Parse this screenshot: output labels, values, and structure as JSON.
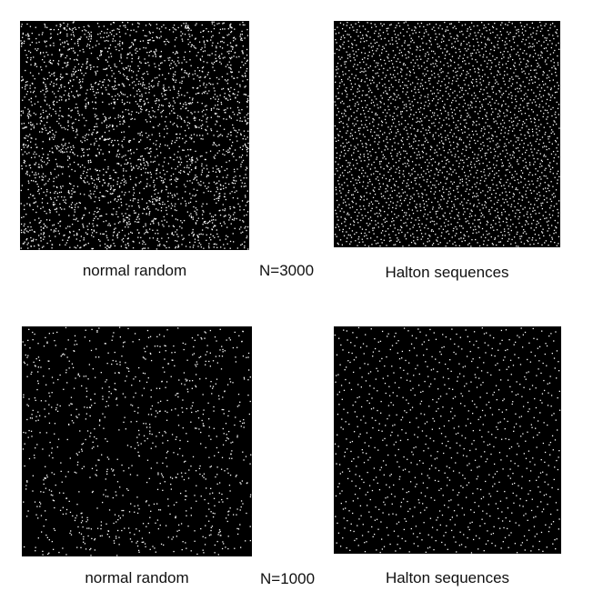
{
  "chart_data": [
    {
      "type": "scatter",
      "caption": "normal random",
      "n": 3000,
      "method": "random",
      "xlim": [
        0,
        1
      ],
      "ylim": [
        0,
        1
      ],
      "background": "#000000",
      "point_color": "#ffffff",
      "grid": false
    },
    {
      "type": "scatter",
      "caption": "Halton sequences",
      "n": 3000,
      "method": "halton",
      "xlim": [
        0,
        1
      ],
      "ylim": [
        0,
        1
      ],
      "background": "#000000",
      "point_color": "#ffffff",
      "grid": false
    },
    {
      "type": "scatter",
      "caption": "normal random",
      "n": 1000,
      "method": "random",
      "xlim": [
        0,
        1
      ],
      "ylim": [
        0,
        1
      ],
      "background": "#000000",
      "point_color": "#ffffff",
      "grid": false
    },
    {
      "type": "scatter",
      "caption": "Halton sequences",
      "n": 1000,
      "method": "halton",
      "xlim": [
        0,
        1
      ],
      "ylim": [
        0,
        1
      ],
      "background": "#000000",
      "point_color": "#ffffff",
      "grid": false
    }
  ],
  "labels": {
    "top_n": "N=3000",
    "bottom_n": "N=1000"
  }
}
